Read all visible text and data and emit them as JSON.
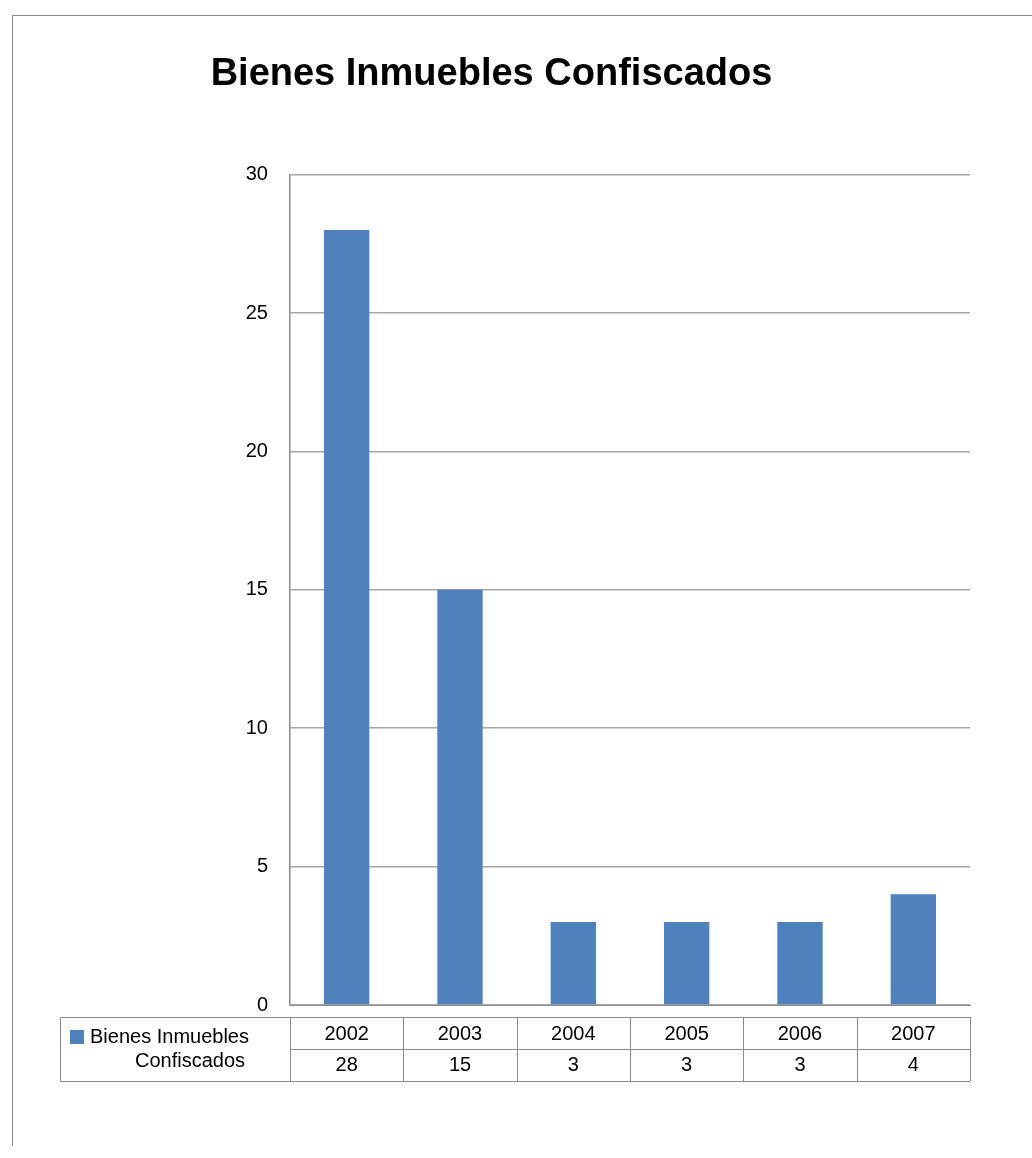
{
  "chart_data": {
    "type": "bar",
    "title": "Bienes Inmuebles Confiscados",
    "categories": [
      "2002",
      "2003",
      "2004",
      "2005",
      "2006",
      "2007"
    ],
    "series": [
      {
        "name": "Bienes Inmuebles Confiscados",
        "color": "#4f81bd",
        "values": [
          28,
          15,
          3,
          3,
          3,
          4
        ]
      }
    ],
    "ylim": [
      0,
      30
    ],
    "yticks": [
      0,
      5,
      10,
      15,
      20,
      25,
      30
    ],
    "grid": "y",
    "legend": "bottom left",
    "data_labels": true
  }
}
